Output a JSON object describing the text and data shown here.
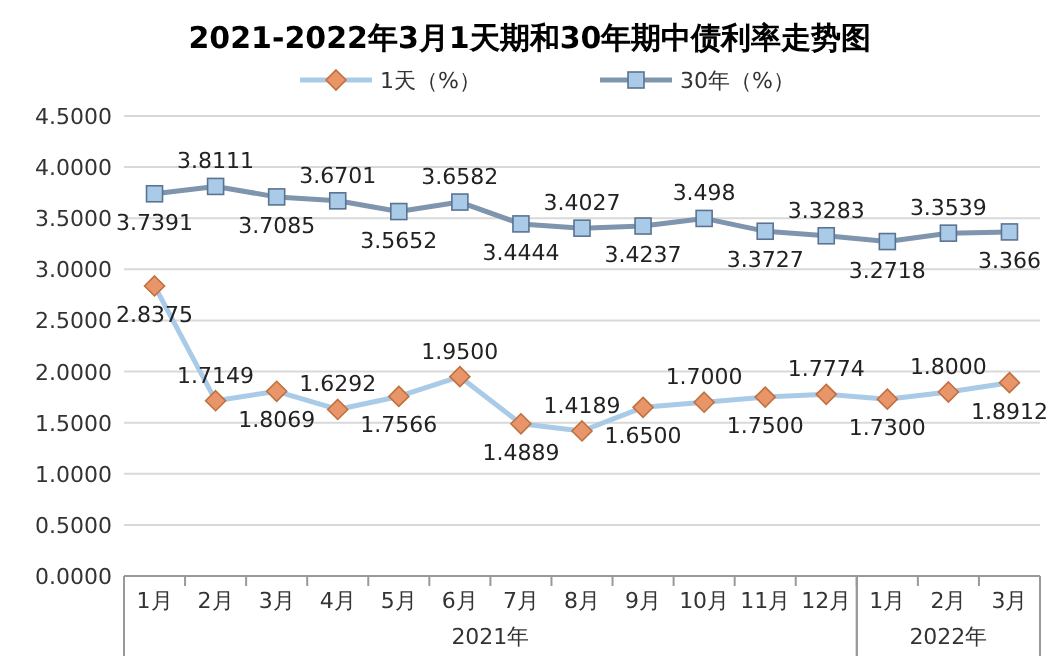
{
  "chart_data": {
    "type": "line",
    "title": "2021-2022年3月1天期和30年期中债利率走势图",
    "categories": [
      "1月",
      "2月",
      "3月",
      "4月",
      "5月",
      "6月",
      "7月",
      "8月",
      "9月",
      "10月",
      "11月",
      "12月",
      "1月",
      "2月",
      "3月"
    ],
    "annotations": [
      "2021年",
      "2022年"
    ],
    "series": [
      {
        "name": "1天（%）",
        "color": "#a9cbe8",
        "marker": "diamond",
        "values": [
          2.8375,
          1.7149,
          1.8069,
          1.6292,
          1.7566,
          1.95,
          1.4889,
          1.4189,
          1.65,
          1.7,
          1.75,
          1.7774,
          1.73,
          1.8,
          1.8912
        ],
        "value_labels": [
          "2.8375",
          "1.7149",
          "1.8069",
          "1.6292",
          "1.7566",
          "1.9500",
          "1.4889",
          "1.4189",
          "1.6500",
          "1.7000",
          "1.7500",
          "1.7774",
          "1.7300",
          "1.8000",
          "1.8912"
        ]
      },
      {
        "name": "30年（%）",
        "color": "#7f94ad",
        "marker": "square",
        "values": [
          3.7391,
          3.8111,
          3.7085,
          3.6701,
          3.5652,
          3.6582,
          3.4444,
          3.4027,
          3.4237,
          3.498,
          3.3727,
          3.3283,
          3.2718,
          3.3539,
          3.366
        ],
        "value_labels": [
          "3.7391",
          "3.8111",
          "3.7085",
          "3.6701",
          "3.5652",
          "3.6582",
          "3.4444",
          "3.4027",
          "3.4237",
          "3.498",
          "3.3727",
          "3.3283",
          "3.2718",
          "3.3539",
          "3.366"
        ]
      }
    ],
    "ylim": [
      0,
      4.5
    ],
    "yticks": [
      {
        "value": 0,
        "label": "0.0000"
      },
      {
        "value": 0.5,
        "label": "0.5000"
      },
      {
        "value": 1,
        "label": "1.0000"
      },
      {
        "value": 1.5,
        "label": "1.5000"
      },
      {
        "value": 2,
        "label": "2.0000"
      },
      {
        "value": 2.5,
        "label": "2.5000"
      },
      {
        "value": 3,
        "label": "3.0000"
      },
      {
        "value": 3.5,
        "label": "3.5000"
      },
      {
        "value": 4,
        "label": "4.0000"
      },
      {
        "value": 4.5,
        "label": "4.5000"
      }
    ],
    "grid": "y",
    "legend": "top",
    "line_style": "solid"
  }
}
